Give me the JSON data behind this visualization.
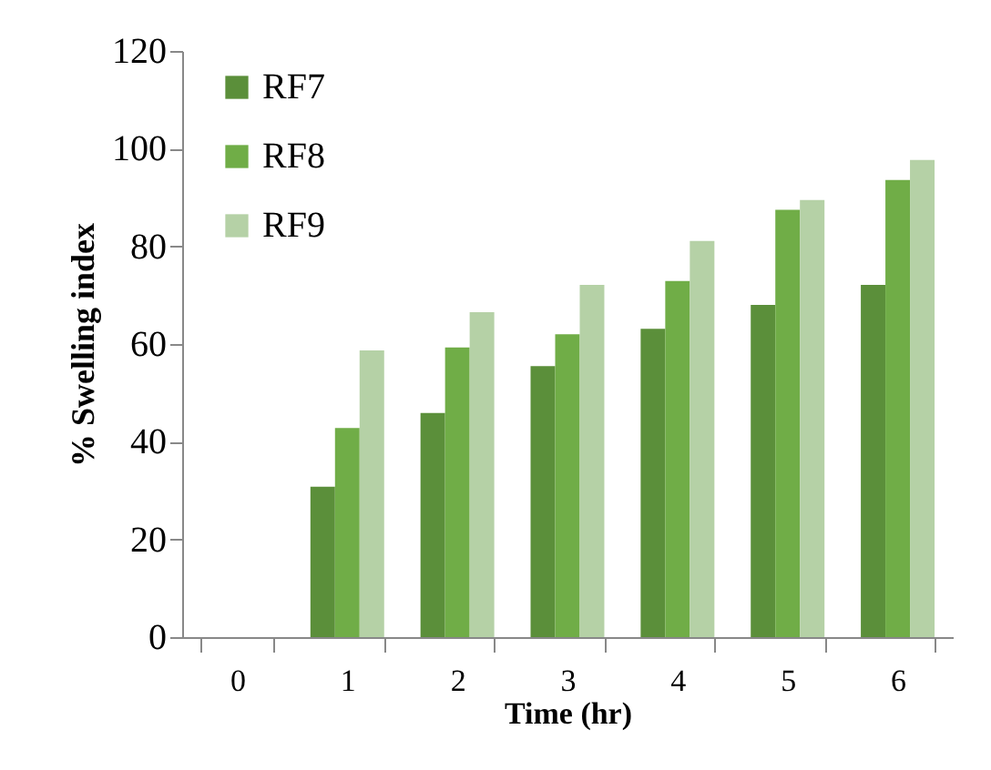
{
  "chart_data": {
    "type": "bar",
    "xlabel": "Time (hr)",
    "ylabel": "% Swelling index",
    "categories": [
      "0",
      "1",
      "2",
      "3",
      "4",
      "5",
      "6"
    ],
    "series": [
      {
        "name": "RF7",
        "color": "#5b8f3a",
        "values": [
          0,
          30.8,
          45.9,
          55.5,
          63.1,
          68,
          72.1
        ]
      },
      {
        "name": "RF8",
        "color": "#70ad47",
        "values": [
          0,
          42.8,
          59.3,
          62,
          72.9,
          87.5,
          93.6
        ]
      },
      {
        "name": "RF9",
        "color": "#b5d1a6",
        "values": [
          0,
          58.7,
          66.5,
          72.1,
          81.1,
          89.5,
          97.7
        ]
      }
    ],
    "ylim": [
      0,
      120
    ],
    "yticks": [
      0,
      20,
      40,
      60,
      80,
      100,
      120
    ],
    "grid": false,
    "legend": "top left"
  }
}
